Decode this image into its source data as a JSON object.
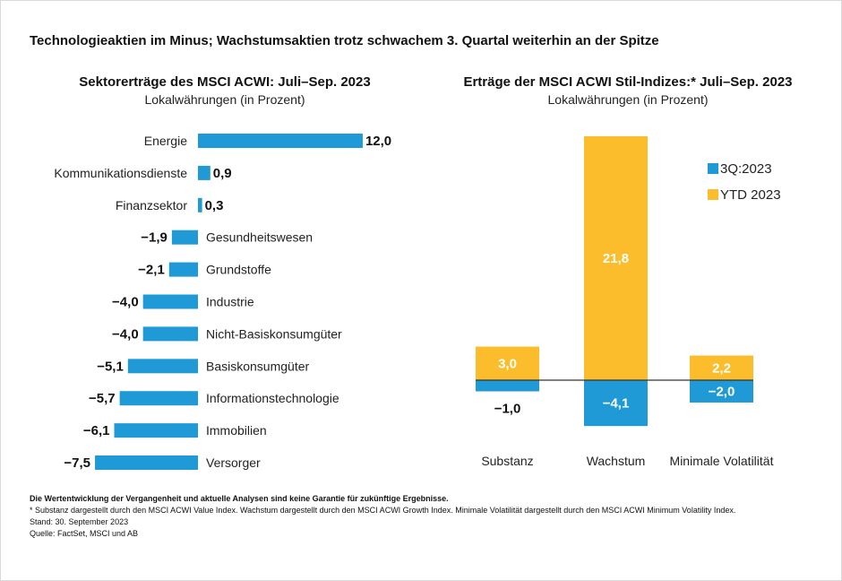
{
  "title": "Technologieaktien im Minus; Wachstumsaktien trotz schwachem 3. Quartal weiterhin an der Spitze",
  "chart_data": [
    {
      "type": "bar",
      "orientation": "horizontal",
      "title": "Sektorerträge des MSCI ACWI: Juli–Sep. 2023",
      "subtitle": "Lokalwährungen (in Prozent)",
      "categories": [
        "Energie",
        "Kommunikationsdienste",
        "Finanzsektor",
        "Gesundheitswesen",
        "Grundstoffe",
        "Industrie",
        "Nicht-Basiskonsumgüter",
        "Basiskonsumgüter",
        "Informationstechnologie",
        "Immobilien",
        "Versorger"
      ],
      "values": [
        12.0,
        0.9,
        0.3,
        -1.9,
        -2.1,
        -4.0,
        -4.0,
        -5.1,
        -5.7,
        -6.1,
        -7.5
      ],
      "labels": [
        "12,0",
        "0,9",
        "0,3",
        "−1,9",
        "−2,1",
        "−4,0",
        "−4,0",
        "−5,1",
        "−5,7",
        "−6,1",
        "−7,5"
      ],
      "color": "#1f9ad6",
      "grid": false
    },
    {
      "type": "bar",
      "title": "Erträge der MSCI ACWI Stil-Indizes:* Juli–Sep. 2023",
      "subtitle": "Lokalwährungen (in Prozent)",
      "categories": [
        "Substanz",
        "Wachstum",
        "Minimale Volatilität"
      ],
      "series": [
        {
          "name": "3Q:2023",
          "values": [
            -1.0,
            -4.1,
            -2.0
          ],
          "labels": [
            "−1,0",
            "−4,1",
            "−2,0"
          ],
          "color": "#1f9ad6"
        },
        {
          "name": "YTD 2023",
          "values": [
            3.0,
            21.8,
            2.2
          ],
          "labels": [
            "3,0",
            "21,8",
            "2,2"
          ],
          "color": "#fbbd2b"
        }
      ],
      "legend": "right",
      "grid": false
    }
  ],
  "footnotes": {
    "disclaimer": "Die Wertentwicklung der Vergangenheit und aktuelle Analysen sind keine Garantie für zukünftige Ergebnisse.",
    "note": "* Substanz dargestellt durch den MSCI ACWI Value Index. Wachstum dargestellt durch den MSCI ACWI Growth Index. Minimale Volatilität dargestellt durch den MSCI ACWI Minimum Volatility Index.",
    "date": "Stand: 30. September 2023",
    "source": "Quelle: FactSet, MSCI und AB"
  }
}
